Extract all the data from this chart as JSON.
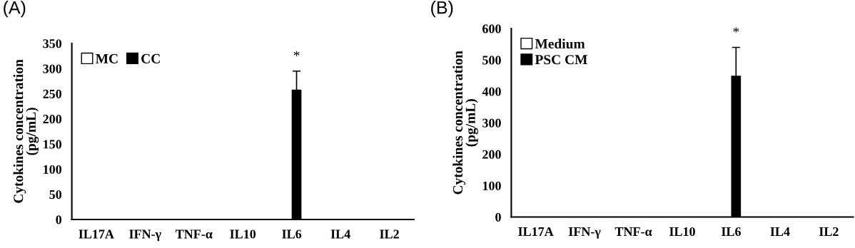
{
  "chart_data": [
    {
      "type": "bar",
      "ylabel": "Cytokines concentration\n(pg/mL)",
      "categories": [
        "IL17A",
        "IFN-γ",
        "TNF-α",
        "IL10",
        "IL6",
        "IL4",
        "IL2"
      ],
      "series": [
        {
          "name": "MC",
          "color": "#ffffff",
          "values": [
            0,
            0,
            0,
            0,
            0,
            0,
            0
          ]
        },
        {
          "name": "CC",
          "color": "#000000",
          "values": [
            0,
            0,
            0,
            0,
            258,
            0,
            0
          ],
          "errors": [
            null,
            null,
            null,
            null,
            37,
            null,
            null
          ]
        }
      ],
      "ylim": [
        0,
        350
      ],
      "yticks": [
        0,
        50,
        100,
        150,
        200,
        250,
        300,
        350
      ],
      "grid": false,
      "legend": "top left",
      "annotations": [
        "(A)",
        {
          "text": "*",
          "x": "IL6",
          "y": 295
        }
      ]
    },
    {
      "type": "bar",
      "ylabel": "Cytokines concentration\n(pg/mL)",
      "categories": [
        "IL17A",
        "IFN-γ",
        "TNF-α",
        "IL10",
        "IL6",
        "IL4",
        "IL2"
      ],
      "series": [
        {
          "name": "Medium",
          "color": "#ffffff",
          "values": [
            0,
            0,
            0,
            0,
            0,
            0,
            0
          ]
        },
        {
          "name": "PSC CM",
          "color": "#000000",
          "values": [
            0,
            0,
            0,
            0,
            450,
            0,
            0
          ],
          "errors": [
            null,
            null,
            null,
            null,
            90,
            null,
            null
          ]
        }
      ],
      "ylim": [
        0,
        600
      ],
      "yticks": [
        0,
        100,
        200,
        300,
        400,
        500,
        600
      ],
      "grid": false,
      "legend": "top left",
      "annotations": [
        "(B)",
        {
          "text": "*",
          "x": "IL6",
          "y": 540
        }
      ]
    }
  ]
}
